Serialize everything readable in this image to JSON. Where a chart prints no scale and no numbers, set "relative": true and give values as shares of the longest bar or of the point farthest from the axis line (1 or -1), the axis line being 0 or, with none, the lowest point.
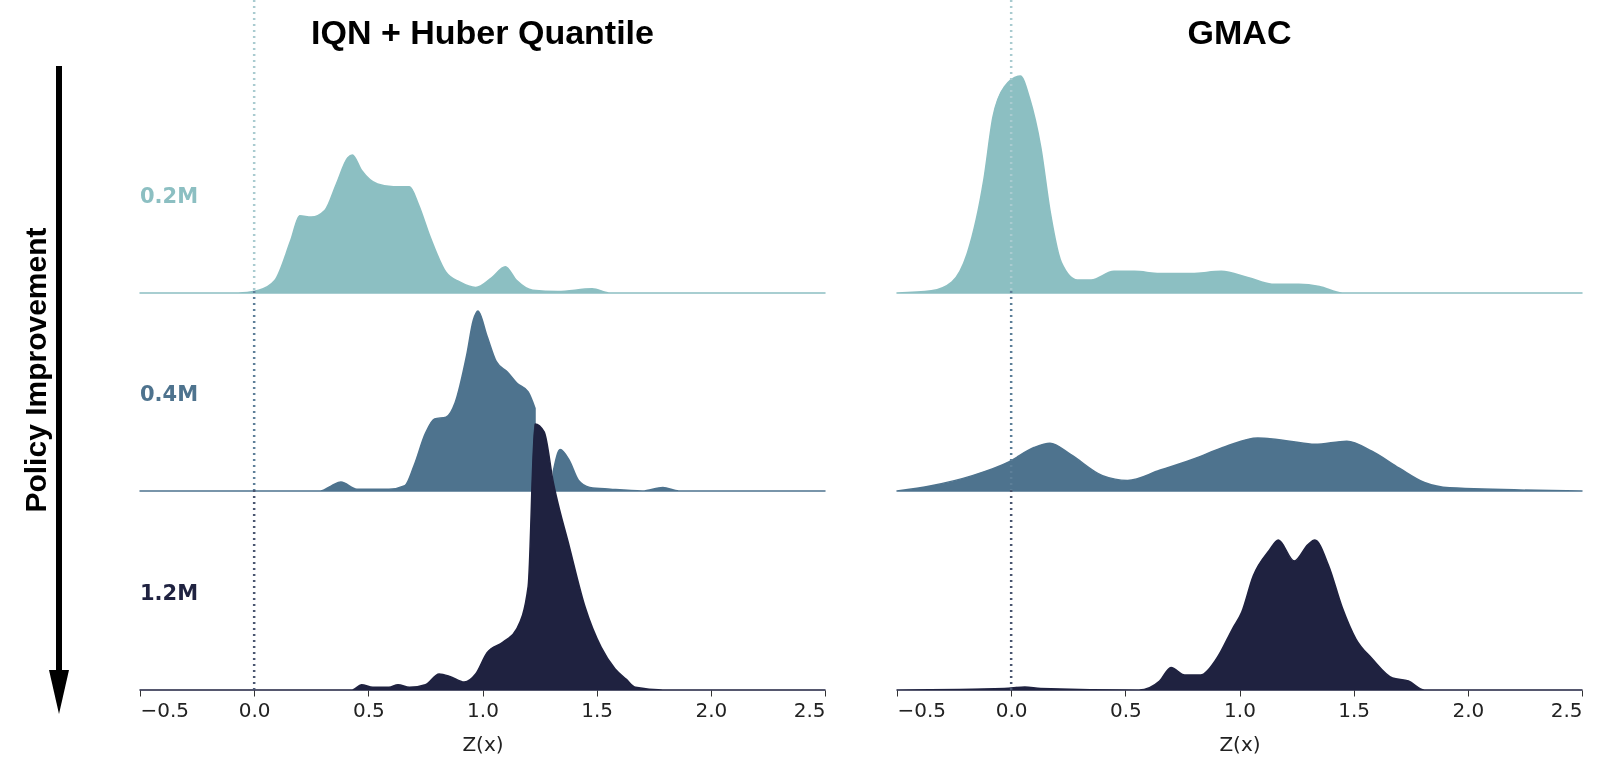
{
  "chart_data": [
    {
      "type": "area",
      "relative": true,
      "title": "IQN + Huber Quantile",
      "ylabel": "Policy Improvement",
      "tick_labels": false,
      "xlim": [
        -0.5,
        2.5
      ],
      "ref_lines": [
        {
          "axis": "x",
          "value": 0,
          "line_style": "dotted",
          "color": "#a9cbd0"
        }
      ],
      "series": [
        {
          "name": "0.2M",
          "color": "#8cbfc2",
          "x": [
            -0.5,
            -0.07,
            0.02,
            0.09,
            0.16,
            0.2,
            0.25,
            0.31,
            0.36,
            0.41,
            0.43,
            0.47,
            0.54,
            0.61,
            0.68,
            0.72,
            0.77,
            0.84,
            0.9,
            0.97,
            1.04,
            1.1,
            1.15,
            1.22,
            1.33,
            1.48,
            1.56,
            2.5
          ],
          "values": [
            0,
            0,
            0.02,
            0.09,
            0.38,
            0.56,
            0.55,
            0.6,
            0.79,
            0.98,
            1,
            0.89,
            0.79,
            0.77,
            0.77,
            0.64,
            0.41,
            0.15,
            0.08,
            0.04,
            0.11,
            0.19,
            0.09,
            0.02,
            0.01,
            0.03,
            0,
            0
          ]
        }
      ]
    },
    {
      "type": "area",
      "relative": true,
      "tick_labels": false,
      "xlim": [
        -0.5,
        2.5
      ],
      "ref_lines": [
        {
          "axis": "x",
          "value": 0,
          "line_style": "dotted",
          "color": "#5d7f99"
        }
      ],
      "series": [
        {
          "name": "0.4M",
          "color": "#4e738e",
          "x": [
            -0.5,
            0.29,
            0.34,
            0.38,
            0.45,
            0.59,
            0.66,
            0.7,
            0.75,
            0.79,
            0.84,
            0.88,
            0.93,
            0.96,
            0.98,
            1.02,
            1.06,
            1.11,
            1.15,
            1.2,
            1.23,
            1.27,
            1.31,
            1.34,
            1.38,
            1.42,
            1.47,
            1.56,
            1.7,
            1.79,
            1.86,
            2.5
          ],
          "values": [
            0,
            0,
            0.03,
            0.05,
            0.01,
            0.01,
            0.03,
            0.14,
            0.32,
            0.4,
            0.41,
            0.49,
            0.75,
            0.95,
            1,
            0.86,
            0.72,
            0.66,
            0.6,
            0.55,
            0.46,
            null,
            0.11,
            0.23,
            0.17,
            0.06,
            0.02,
            0.01,
            0,
            0.02,
            0,
            0
          ]
        }
      ]
    },
    {
      "type": "area",
      "relative": true,
      "xlabel": "Z(x)",
      "tick_labels": "x",
      "xlim": [
        -0.5,
        2.5
      ],
      "xticks": [
        {
          "value": -0.5,
          "label": "−0.5"
        },
        {
          "value": 0,
          "label": "0.0"
        },
        {
          "value": 0.5,
          "label": "0.5"
        },
        {
          "value": 1,
          "label": "1.0"
        },
        {
          "value": 1.5,
          "label": "1.5"
        },
        {
          "value": 2,
          "label": "2.0"
        },
        {
          "value": 2.5,
          "label": "2.5"
        }
      ],
      "ref_lines": [
        {
          "axis": "x",
          "value": 0,
          "line_style": "dotted",
          "color": "#4a5670"
        }
      ],
      "series": [
        {
          "name": "1.2M",
          "color": "#1f2240",
          "x": [
            -0.5,
            0.43,
            0.47,
            0.52,
            0.59,
            0.63,
            0.68,
            0.75,
            0.81,
            0.86,
            0.92,
            0.97,
            1.02,
            1.09,
            1.15,
            1.2,
            1.23,
            1.27,
            1.31,
            1.38,
            1.45,
            1.52,
            1.58,
            1.63,
            1.67,
            1.79,
            2.5
          ],
          "values": [
            0,
            0,
            0.02,
            0.01,
            0.01,
            0.02,
            0.01,
            0.02,
            0.06,
            0.05,
            0.03,
            0.06,
            0.14,
            0.18,
            0.23,
            0.39,
            1,
            0.97,
            0.78,
            0.54,
            0.31,
            0.16,
            0.08,
            0.04,
            0.01,
            0,
            0
          ]
        }
      ]
    },
    {
      "type": "area",
      "relative": true,
      "title": "GMAC",
      "tick_labels": false,
      "xlim": [
        -0.5,
        2.5
      ],
      "ref_lines": [
        {
          "axis": "x",
          "value": 0,
          "line_style": "dotted",
          "color": "#a9cbd0"
        }
      ],
      "series": [
        {
          "color": "#8cbfc2",
          "x": [
            -0.5,
            -0.35,
            -0.26,
            -0.19,
            -0.12,
            -0.08,
            -0.03,
            0.04,
            0.08,
            0.13,
            0.17,
            0.22,
            0.29,
            0.35,
            0.45,
            0.54,
            0.65,
            0.79,
            0.92,
            1.04,
            1.15,
            1.26,
            1.35,
            1.45,
            2.5
          ],
          "values": [
            0,
            0.01,
            0.05,
            0.19,
            0.52,
            0.81,
            0.95,
            1,
            0.9,
            0.67,
            0.38,
            0.14,
            0.06,
            0.06,
            0.1,
            0.1,
            0.09,
            0.09,
            0.1,
            0.07,
            0.04,
            0.04,
            0.03,
            0,
            0
          ]
        }
      ]
    },
    {
      "type": "area",
      "relative": true,
      "tick_labels": false,
      "xlim": [
        -0.5,
        2.5
      ],
      "ref_lines": [
        {
          "axis": "x",
          "value": 0,
          "line_style": "dotted",
          "color": "#5d7f99"
        }
      ],
      "series": [
        {
          "color": "#4e738e",
          "x": [
            -0.5,
            -0.35,
            -0.17,
            -0.01,
            0.1,
            0.17,
            0.26,
            0.4,
            0.51,
            0.65,
            0.79,
            0.94,
            1.08,
            1.22,
            1.33,
            1.47,
            1.58,
            1.7,
            1.81,
            1.92,
            2.5
          ],
          "values": [
            0,
            0.1,
            0.29,
            0.55,
            0.82,
            0.9,
            0.69,
            0.29,
            0.2,
            0.39,
            0.59,
            0.84,
            1,
            0.94,
            0.88,
            0.94,
            0.75,
            0.43,
            0.16,
            0.06,
            0
          ]
        }
      ]
    },
    {
      "type": "area",
      "relative": true,
      "xlabel": "Z(x)",
      "tick_labels": "x",
      "xlim": [
        -0.5,
        2.5
      ],
      "xticks": [
        {
          "value": -0.5,
          "label": "−0.5"
        },
        {
          "value": 0,
          "label": "0.0"
        },
        {
          "value": 0.5,
          "label": "0.5"
        },
        {
          "value": 1,
          "label": "1.0"
        },
        {
          "value": 1.5,
          "label": "1.5"
        },
        {
          "value": 2,
          "label": "2.0"
        },
        {
          "value": 2.5,
          "label": "2.5"
        }
      ],
      "ref_lines": [
        {
          "axis": "x",
          "value": 0,
          "line_style": "dotted",
          "color": "#4a5670"
        }
      ],
      "series": [
        {
          "color": "#1f2240",
          "x": [
            -0.5,
            -0.03,
            0.06,
            0.13,
            0.56,
            0.65,
            0.7,
            0.76,
            0.83,
            0.9,
            0.97,
            1.01,
            1.06,
            1.13,
            1.17,
            1.24,
            1.3,
            1.33,
            1.39,
            1.45,
            1.51,
            1.58,
            1.67,
            1.74,
            1.81,
            2.5
          ],
          "values": [
            0,
            0.01,
            0.02,
            0.01,
            0,
            0.06,
            0.15,
            0.1,
            0.1,
            0.21,
            0.41,
            0.52,
            0.76,
            0.93,
            1,
            0.86,
            0.97,
            1,
            0.83,
            0.55,
            0.34,
            0.21,
            0.08,
            0.06,
            0,
            0
          ]
        }
      ]
    }
  ]
}
